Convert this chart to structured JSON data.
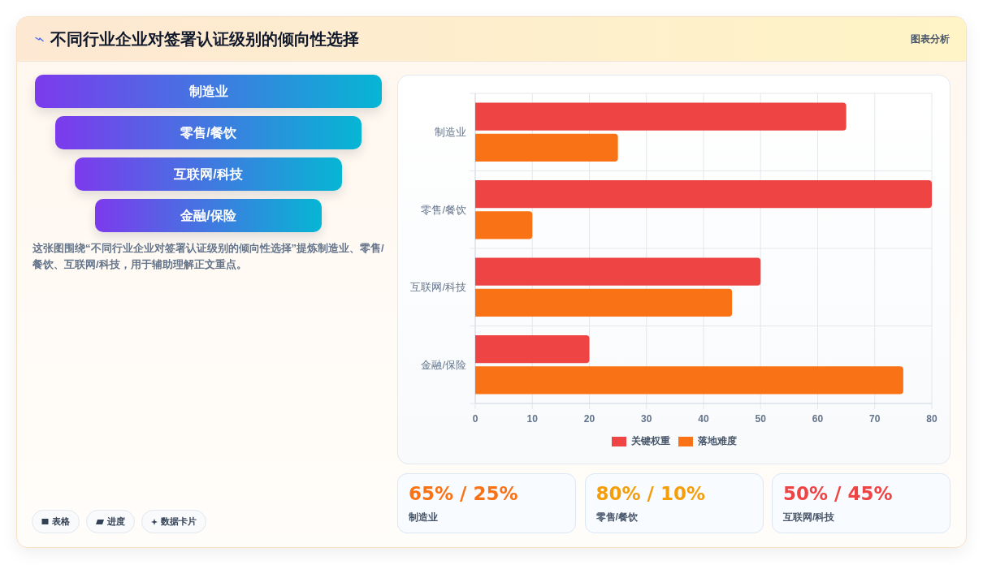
{
  "chart_data": [
    {
      "type": "other",
      "title": "不同行业企业对签署认证级别的倾向性选择",
      "categories": [
        "制造业",
        "零售/餐饮",
        "互联网/科技",
        "金融/保险"
      ],
      "annotations": [
        "图表分析",
        "这张图围绕“不同行业企业对签署认证级别的倾向性选择”提炼制造业、零售/餐饮、互联网/科技，用于辅助理解正文重点。",
        "表格",
        "进度",
        "数据卡片"
      ]
    },
    {
      "type": "bar",
      "orientation": "horizontal",
      "categories": [
        "制造业",
        "零售/餐饮",
        "互联网/科技",
        "金融/保险"
      ],
      "series": [
        {
          "name": "关键权重",
          "color": "#ef4444",
          "values": [
            65,
            80,
            50,
            20
          ]
        },
        {
          "name": "落地难度",
          "color": "#f97316",
          "values": [
            25,
            10,
            45,
            75
          ]
        }
      ],
      "xlim": [
        0,
        80
      ],
      "xticks": [
        0,
        10,
        20,
        30,
        40,
        50,
        60,
        70,
        80
      ],
      "grid": true,
      "legend": "bottom"
    },
    {
      "type": "other",
      "categories": [
        "制造业",
        "零售/餐饮",
        "互联网/科技"
      ],
      "annotations": [
        "65% / 25%",
        "80% / 10%",
        "50% / 45%"
      ]
    }
  ]
}
